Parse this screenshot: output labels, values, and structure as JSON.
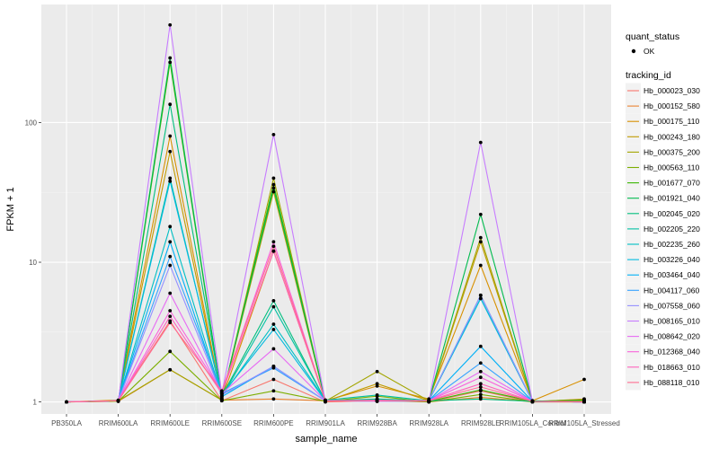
{
  "chart_data": {
    "type": "line",
    "title": "",
    "xlabel": "sample_name",
    "ylabel": "FPKM + 1",
    "yscale": "log10",
    "ylim": [
      0.82,
      700
    ],
    "y_ticks": [
      1,
      10,
      100
    ],
    "y_tick_labels": [
      "1",
      "10",
      "100"
    ],
    "categories": [
      "PB350LA",
      "RRIM600LA",
      "RRIM600LE",
      "RRIM600SE",
      "RRIM600PE",
      "RRIM901LA",
      "RRIM928BA",
      "RRIM928LA",
      "RRIM928LE",
      "RRIM105LA_Control",
      "RRIM105LA_Stressed"
    ],
    "legend_quant": {
      "title": "quant_status",
      "label": "OK"
    },
    "legend_title": "tracking_id",
    "series": [
      {
        "name": "Hb_000023_030",
        "color": "#F8766D",
        "values": [
          1,
          1.02,
          3.8,
          1.02,
          1.45,
          1,
          1.02,
          1,
          1.2,
          1,
          1
        ]
      },
      {
        "name": "Hb_000152_580",
        "color": "#EA8331",
        "values": [
          1,
          1.01,
          1.7,
          1.03,
          1.05,
          1.02,
          1.04,
          1,
          1.08,
          1,
          1.05
        ]
      },
      {
        "name": "Hb_000175_110",
        "color": "#D89000",
        "values": [
          1,
          1.03,
          80,
          1.05,
          12,
          1.02,
          1.3,
          1.05,
          9.5,
          1.02,
          1.45
        ]
      },
      {
        "name": "Hb_000243_180",
        "color": "#C09B00",
        "values": [
          1,
          1.02,
          62,
          1.04,
          32,
          1.01,
          1.35,
          1.02,
          14,
          1.01,
          1.02
        ]
      },
      {
        "name": "Hb_000375_200",
        "color": "#A3A500",
        "values": [
          1,
          1.02,
          1.7,
          1.03,
          40,
          1.01,
          1.65,
          1.02,
          15,
          1.01,
          1.04
        ]
      },
      {
        "name": "Hb_000563_110",
        "color": "#7CAE00",
        "values": [
          1,
          1.01,
          2.3,
          1.02,
          1.2,
          1.01,
          1.1,
          1,
          1.13,
          1,
          1
        ]
      },
      {
        "name": "Hb_001677_070",
        "color": "#39B600",
        "values": [
          1,
          1.02,
          270,
          1.05,
          36,
          1.02,
          1.02,
          1.01,
          1.22,
          1.01,
          1.03
        ]
      },
      {
        "name": "Hb_001921_040",
        "color": "#00BB4E",
        "values": [
          1,
          1.02,
          290,
          1.06,
          34,
          1.03,
          1.01,
          1.02,
          22,
          1.02,
          1
        ]
      },
      {
        "name": "Hb_002045_020",
        "color": "#00BF7D",
        "values": [
          1,
          1.02,
          135,
          1.1,
          5.3,
          1.02,
          1.05,
          1.02,
          1.05,
          1.01,
          1
        ]
      },
      {
        "name": "Hb_002205_220",
        "color": "#00C1A3",
        "values": [
          1,
          1.02,
          40,
          1.08,
          4.8,
          1.03,
          1.12,
          1.02,
          5.5,
          1.01,
          1
        ]
      },
      {
        "name": "Hb_002235_260",
        "color": "#00BFC4",
        "values": [
          1,
          1.02,
          18,
          1.1,
          3.6,
          1.03,
          1.02,
          1.02,
          5.8,
          1.01,
          1
        ]
      },
      {
        "name": "Hb_003226_040",
        "color": "#00BAE0",
        "values": [
          1,
          1.02,
          38,
          1.12,
          3.3,
          1.02,
          1.02,
          1.02,
          5.5,
          1.01,
          1
        ]
      },
      {
        "name": "Hb_003464_040",
        "color": "#00B0F6",
        "values": [
          1,
          1.02,
          14,
          1.09,
          1.8,
          1.02,
          1.01,
          1.02,
          2.5,
          1.01,
          1
        ]
      },
      {
        "name": "Hb_004117_060",
        "color": "#35A2FF",
        "values": [
          1,
          1.02,
          11,
          1.15,
          1.75,
          1.02,
          1.02,
          1.02,
          1.9,
          1.01,
          1
        ]
      },
      {
        "name": "Hb_007558_060",
        "color": "#9590FF",
        "values": [
          1,
          1.02,
          9.5,
          1.12,
          1.8,
          1.02,
          1.03,
          1.02,
          5.8,
          1.01,
          1
        ]
      },
      {
        "name": "Hb_008165_010",
        "color": "#C77CFF",
        "values": [
          1,
          1.02,
          500,
          1.15,
          82,
          1.02,
          1.01,
          1.02,
          72,
          1.01,
          1
        ]
      },
      {
        "name": "Hb_008642_020",
        "color": "#E76BF3",
        "values": [
          1,
          1.02,
          6,
          1.15,
          2.4,
          1.02,
          1.02,
          1.02,
          1.65,
          1.01,
          1
        ]
      },
      {
        "name": "Hb_012368_040",
        "color": "#FA62DB",
        "values": [
          1,
          1.02,
          4.5,
          1.18,
          14,
          1.02,
          1.02,
          1.02,
          1.5,
          1.01,
          1
        ]
      },
      {
        "name": "Hb_018663_010",
        "color": "#FF62BC",
        "values": [
          1,
          1.02,
          4.1,
          1.15,
          12,
          1.02,
          1.02,
          1.02,
          1.35,
          1.01,
          1
        ]
      },
      {
        "name": "Hb_088118_010",
        "color": "#FF6C91",
        "values": [
          1,
          1.02,
          3.7,
          1.2,
          13,
          1.02,
          1.02,
          1.02,
          1.28,
          1.01,
          1
        ]
      }
    ]
  }
}
